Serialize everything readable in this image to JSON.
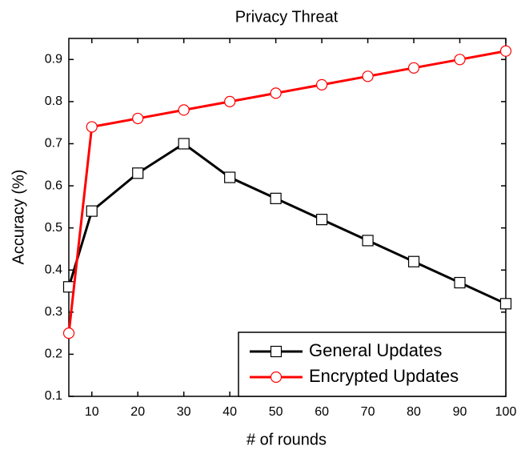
{
  "chart_data": {
    "type": "line",
    "title": "Privacy Threat",
    "x_label": "# of rounds",
    "y_label": "Accuracy (%)",
    "x": [
      5,
      10,
      20,
      30,
      40,
      50,
      60,
      70,
      80,
      90,
      100
    ],
    "series": [
      {
        "name": "General Updates",
        "color": "#000000",
        "marker": "square",
        "values": [
          0.36,
          0.54,
          0.63,
          0.7,
          0.62,
          0.57,
          0.52,
          0.47,
          0.42,
          0.37,
          0.32
        ]
      },
      {
        "name": "Encrypted Updates",
        "color": "#ff0000",
        "marker": "circle",
        "values": [
          0.25,
          0.74,
          0.76,
          0.78,
          0.8,
          0.82,
          0.84,
          0.86,
          0.88,
          0.9,
          0.92
        ]
      }
    ],
    "xlim": [
      5,
      100
    ],
    "xticks": [
      10,
      20,
      30,
      40,
      50,
      60,
      70,
      80,
      90,
      100
    ],
    "ylim": [
      0.1,
      0.95
    ],
    "yticks": [
      0.1,
      0.2,
      0.3,
      0.4,
      0.5,
      0.6,
      0.7,
      0.8,
      0.9
    ],
    "legend": "lower right",
    "grid": false
  }
}
